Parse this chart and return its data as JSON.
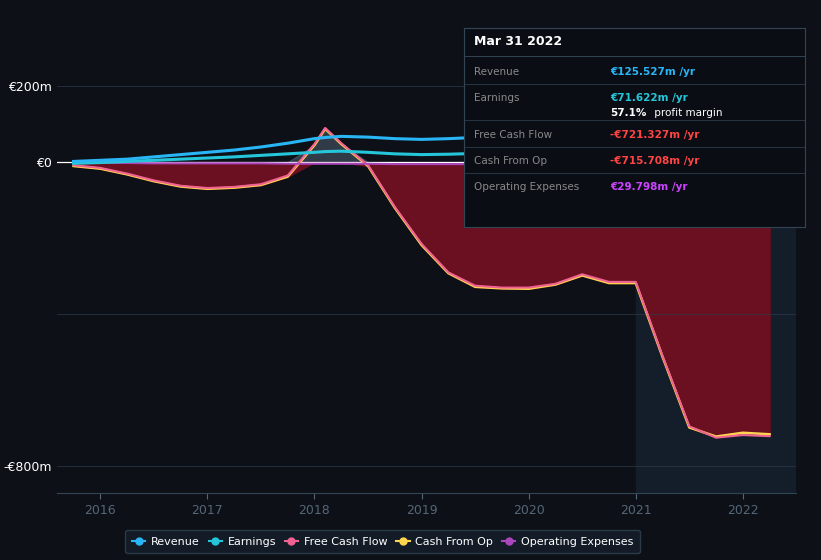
{
  "bg_color": "#0d1117",
  "highlight_color": "#141e2b",
  "fill_color_neg": "#6b1020",
  "revenue_color": "#29b6f6",
  "earnings_color": "#26c6da",
  "fcf_color": "#f06292",
  "cashop_color": "#ffd54f",
  "opex_color": "#ab47bc",
  "ylim_low": -870,
  "ylim_high": 250,
  "xlim_low": 2015.6,
  "xlim_high": 2022.5,
  "highlight_x_start": 2021.0,
  "yticks": [
    -800,
    0,
    200
  ],
  "ytick_labels": [
    "-€800m",
    "€0",
    "€200m"
  ],
  "xtick_years": [
    2016,
    2017,
    2018,
    2019,
    2020,
    2021,
    2022
  ],
  "x": [
    2015.75,
    2016.0,
    2016.25,
    2016.5,
    2016.75,
    2017.0,
    2017.25,
    2017.5,
    2017.75,
    2018.0,
    2018.1,
    2018.25,
    2018.5,
    2018.75,
    2019.0,
    2019.25,
    2019.5,
    2019.75,
    2020.0,
    2020.25,
    2020.5,
    2020.75,
    2021.0,
    2021.25,
    2021.5,
    2021.75,
    2022.0,
    2022.25
  ],
  "revenue": [
    2,
    5,
    8,
    14,
    20,
    26,
    32,
    40,
    50,
    62,
    65,
    68,
    66,
    62,
    60,
    62,
    65,
    68,
    72,
    76,
    80,
    85,
    90,
    98,
    108,
    118,
    122,
    126
  ],
  "earnings": [
    -3,
    -1,
    2,
    5,
    8,
    11,
    14,
    18,
    22,
    26,
    28,
    29,
    26,
    22,
    20,
    21,
    23,
    25,
    28,
    31,
    34,
    38,
    43,
    52,
    62,
    68,
    71,
    72
  ],
  "fcf": [
    -8,
    -15,
    -30,
    -48,
    -62,
    -68,
    -65,
    -58,
    -35,
    48,
    90,
    50,
    -8,
    -118,
    -215,
    -290,
    -325,
    -330,
    -330,
    -320,
    -295,
    -315,
    -315,
    -510,
    -695,
    -725,
    -718,
    -721
  ],
  "cashop": [
    -10,
    -17,
    -32,
    -50,
    -64,
    -70,
    -67,
    -60,
    -38,
    45,
    88,
    48,
    -10,
    -120,
    -218,
    -292,
    -328,
    -332,
    -333,
    -322,
    -298,
    -318,
    -318,
    -512,
    -698,
    -722,
    -712,
    -716
  ],
  "opex": [
    -2,
    -2,
    -2,
    -3,
    -3,
    -3,
    -3,
    -3,
    -4,
    -4,
    -4,
    -4,
    -4,
    -5,
    -5,
    -5,
    -5,
    -5,
    -5,
    -5,
    -5,
    -5,
    -5,
    10,
    22,
    28,
    30,
    30
  ],
  "legend_items": [
    "Revenue",
    "Earnings",
    "Free Cash Flow",
    "Cash From Op",
    "Operating Expenses"
  ],
  "legend_colors": [
    "#29b6f6",
    "#26c6da",
    "#f06292",
    "#ffd54f",
    "#ab47bc"
  ],
  "info_title": "Mar 31 2022",
  "info_rows": [
    {
      "label": "Revenue",
      "value": "€125.527m /yr",
      "lc": "#888888",
      "vc": "#29b6f6",
      "bold_prefix": ""
    },
    {
      "label": "Earnings",
      "value": "€71.622m /yr",
      "lc": "#888888",
      "vc": "#26c6da",
      "bold_prefix": ""
    },
    {
      "label": "",
      "value": "profit margin",
      "lc": "#888888",
      "vc": "#ffffff",
      "bold_prefix": "57.1%"
    },
    {
      "label": "Free Cash Flow",
      "value": "-€721.327m /yr",
      "lc": "#888888",
      "vc": "#ff4444",
      "bold_prefix": ""
    },
    {
      "label": "Cash From Op",
      "value": "-€715.708m /yr",
      "lc": "#888888",
      "vc": "#ff4444",
      "bold_prefix": ""
    },
    {
      "label": "Operating Expenses",
      "value": "€29.798m /yr",
      "lc": "#888888",
      "vc": "#cc44ff",
      "bold_prefix": ""
    }
  ]
}
